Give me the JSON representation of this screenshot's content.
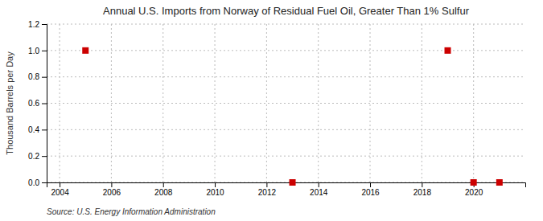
{
  "chart_data": {
    "type": "scatter",
    "title": "Annual U.S. Imports from Norway of Residual Fuel Oil, Greater Than 1% Sulfur",
    "y_label": "Thousand Barrels per Day",
    "annotations": [
      "Source: U.S. Energy Information Administration"
    ],
    "x": [
      2005,
      2013,
      2019,
      2020,
      2021
    ],
    "values": [
      1.0,
      0.0,
      1.0,
      0.0,
      0.0
    ],
    "color": "#cc0000",
    "marker": "square",
    "xlim": [
      2003.5,
      2022.0
    ],
    "ylim": [
      0.0,
      1.2
    ],
    "xticks": [
      2004,
      2006,
      2008,
      2010,
      2012,
      2014,
      2016,
      2018,
      2020
    ],
    "yticks": [
      {
        "value": 0.0,
        "label": "0.0"
      },
      0.2,
      0.4,
      0.6,
      0.8,
      {
        "value": 1.0,
        "label": "1.0"
      },
      1.2
    ],
    "grid": true
  }
}
